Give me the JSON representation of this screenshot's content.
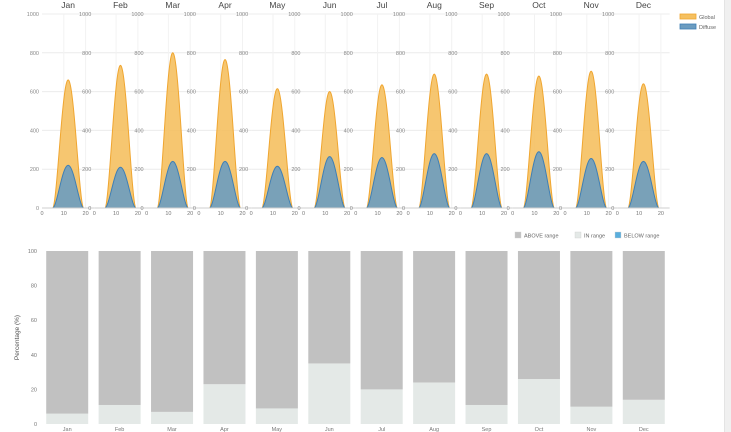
{
  "chart_data": [
    {
      "type": "area",
      "months": [
        "Jan",
        "Feb",
        "Mar",
        "Apr",
        "May",
        "Jun",
        "Jul",
        "Aug",
        "Sep",
        "Oct",
        "Nov",
        "Dec"
      ],
      "x_ticks": [
        "0",
        "10",
        "20"
      ],
      "xlim": [
        0,
        24
      ],
      "ylim": [
        0,
        1000
      ],
      "y_ticks": [
        "0",
        "200",
        "400",
        "600",
        "800",
        "1000"
      ],
      "grid": true,
      "legend_position": "top-right",
      "series": [
        {
          "name": "Global",
          "color": "#f5c060",
          "line_color": "#f0a630",
          "peaks": [
            660,
            735,
            800,
            765,
            615,
            600,
            635,
            690,
            690,
            680,
            705,
            640
          ]
        },
        {
          "name": "Diffuse",
          "color": "#6b9cc0",
          "line_color": "#3f7fb5",
          "peaks": [
            220,
            210,
            240,
            240,
            215,
            265,
            260,
            280,
            280,
            290,
            255,
            240
          ]
        }
      ]
    },
    {
      "type": "bar",
      "stacked": true,
      "categories": [
        "Jan",
        "Feb",
        "Mar",
        "Apr",
        "May",
        "Jun",
        "Jul",
        "Aug",
        "Sep",
        "Oct",
        "Nov",
        "Dec"
      ],
      "ylabel": "Percentage (%)",
      "ylim": [
        0,
        100
      ],
      "y_ticks": [
        "0",
        "20",
        "40",
        "60",
        "80",
        "100"
      ],
      "legend_position": "top-right",
      "series": [
        {
          "name": "BELOW range",
          "color": "#5aaedc",
          "values": [
            0,
            0,
            0,
            0,
            0,
            0,
            0,
            0,
            0,
            0,
            0,
            0
          ]
        },
        {
          "name": "IN range",
          "color": "#e4e9e7",
          "values": [
            6,
            11,
            7,
            23,
            9,
            35,
            20,
            24,
            11,
            26,
            10,
            14
          ]
        },
        {
          "name": "ABOVE range",
          "color": "#c1c1c1",
          "values": [
            94,
            89,
            93,
            77,
            91,
            65,
            80,
            76,
            89,
            74,
            90,
            86
          ]
        }
      ],
      "legend_order": [
        "ABOVE range",
        "IN range",
        "BELOW range"
      ]
    }
  ]
}
